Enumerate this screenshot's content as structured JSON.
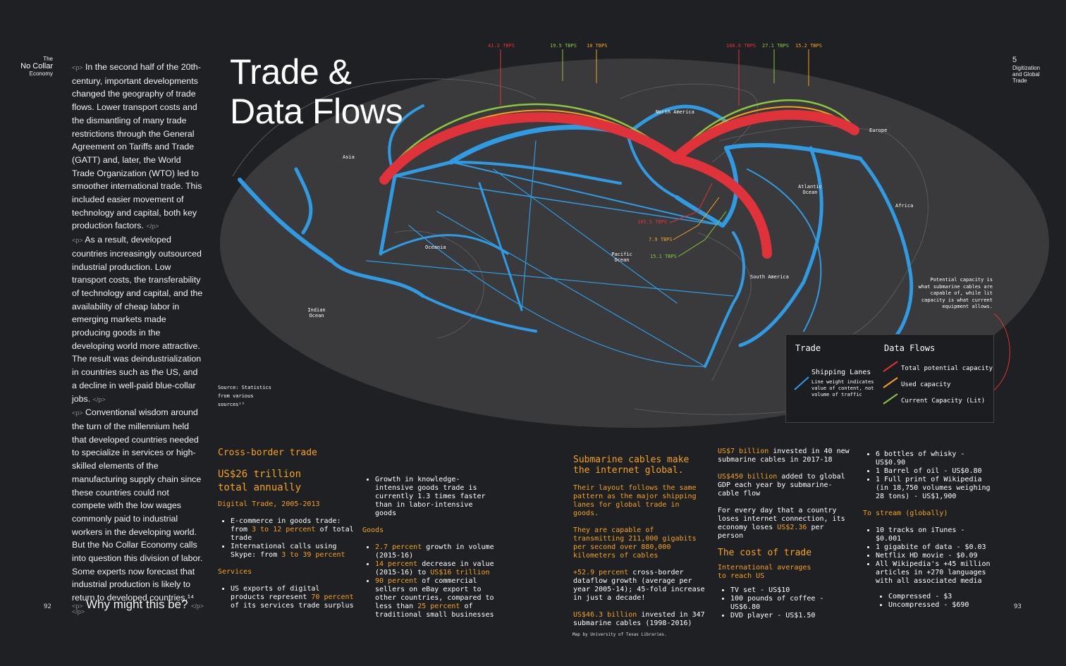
{
  "header": {
    "left_small": "The",
    "left_big": "No Collar",
    "left_small2": "Economy",
    "right_num": "5",
    "right_title_1": "Digitization",
    "right_title_2": "and Global",
    "right_title_3": "Trade"
  },
  "page_numbers": {
    "left": "92",
    "right": "93"
  },
  "tags": {
    "open": "<p>",
    "close": "</p>"
  },
  "body_paragraphs": [
    "In the second half of the 20th-century, important developments changed the geography of trade flows. Lower transport costs and the dismantling of many trade restrictions through the General Agreement on Tariffs and Trade (GATT) and, later, the World Trade Organization (WTO) led to smoother international trade. This included easier movement of technology and capital, both key production factors.",
    "As a result, developed countries increasingly outsourced industrial production. Low transport costs, the transferability of technology and capital, and the availability of cheap labor in emerging markets made producing goods in the developing world more attractive. The result was deindustrialization in countries such as the US, and a decline in well-paid blue-collar jobs.",
    "Conventional wisdom around the turn of the millennium held that developed countries needed to specialize in services or high-skilled elements of the manufacturing supply chain since these countries could not compete with the low wages commonly paid to industrial workers in the developing world. But the No Collar Economy calls into question this division of labor. Some experts now forecast that industrial production is likely to return to developed countries.¹⁴"
  ],
  "question": "Why might this be?",
  "title_line1": "Trade &",
  "title_line2": "Data Flows",
  "map": {
    "source_1": "Source: Statistics",
    "source_2": "from various",
    "source_3": "sources¹⁵",
    "credit": "Map by University of Texas Libraries.",
    "regions": {
      "asia": "Asia",
      "north_america": "North America",
      "europe": "Europe",
      "atlantic": "Atlantic Ocean",
      "africa": "Africa",
      "oceania": "Oceania",
      "pacific": "Pacific Ocean",
      "south_america": "South America",
      "indian": "Indian Ocean"
    },
    "tbps": {
      "left_red": "41.2 TBPS",
      "left_green": "19.5 TBPS",
      "left_orange": "10 TBPS",
      "right_red": "166.6 TBPS",
      "right_green": "27.1 TBPS",
      "right_orange": "15.2 TBPS",
      "sa_red": "105.5 TBPS",
      "sa_orange": "7.9 TBPS",
      "sa_green": "15.1 TBPS"
    },
    "note": "Potential capacity is what submarine cables are capable of, while lit capacity is what current equipment allows.",
    "colors": {
      "red": "#e0323a",
      "orange": "#f5a21b",
      "green": "#8cc63f",
      "blue": "#2f9be3"
    }
  },
  "legend": {
    "trade_title": "Trade",
    "data_title": "Data Flows",
    "shipping": "Shipping Lanes",
    "shipping_note": "Line weight indicates value of content, not volume of traffic",
    "total": "Total potential capacity",
    "used": "Used capacity",
    "current": "Current Capacity (Lit)"
  },
  "col1": {
    "heading": "Cross-border trade",
    "big1": "US$26 trillion",
    "big2": "total annually",
    "sub1": "Digital Trade, 2005-2013",
    "items1": [
      {
        "a": "E-commerce in goods trade: from ",
        "o": "3 to 12 percent",
        "b": " of total trade"
      },
      {
        "a": "International calls using Skype: from ",
        "o": "3 to 39 percent",
        "b": ""
      }
    ],
    "sub2": "Services",
    "items2": [
      {
        "a": "US exports of digital products represent ",
        "o": "70 percent",
        "b": " of its services trade surplus"
      }
    ]
  },
  "col2": {
    "item0": "Growth in knowledge-intensive goods trade is currently 1.3 times faster than in labor-intensive goods",
    "sub": "Goods",
    "items": [
      {
        "o": "2.7 percent",
        "b": " growth in volume (2015-16)"
      },
      {
        "o": "14 percent",
        "b": " decrease in value (2015-16) to ",
        "o2": "US$16 trillion"
      },
      {
        "o": "90 percent",
        "b": " of commercial sellers on eBay export to other countries, compared to less than ",
        "o2": "25 percent",
        "c": " of traditional small businesses"
      }
    ]
  },
  "col3": {
    "heading1": "Submarine cables make",
    "heading2": "the internet global.",
    "p1": "Their layout follows the same pattern as the major shipping lanes for global trade in goods.",
    "p2": "They are capable of transmitting 211,000 gigabits per second over 880,000 kilometers of cables",
    "p3o": "+52.9 percent",
    "p3": " cross-border dataflow growth (average per year 2005-14); 45-fold increase in just a decade!",
    "p4o": "US$46.3 billion",
    "p4": " invested in 347 submarine cables (1998-2016)"
  },
  "col4": {
    "p1o": "US$7 billion",
    "p1": " invested in 40 new submarine cables in 2017-18",
    "p2o": "US$450 billion",
    "p2": " added to global GDP each year by submarine-cable flow",
    "p3": "For every day that a country loses internet connection, its economy loses ",
    "p3o": "US$2.36",
    "p3b": " per person",
    "heading": "The cost of trade",
    "sub1": "International averages",
    "sub2": "to reach US",
    "items": [
      "TV set - US$10",
      "100 pounds of coffee - US$6.80",
      "DVD player - US$1.50"
    ]
  },
  "col5": {
    "items1": [
      "6 bottles of whisky - US$0.90",
      "1 Barrel of oil - US$0.80",
      "1 Full print of Wikipedia (in 18,750 volumes weighing 28 tons) - US$1,900"
    ],
    "heading": "To stream (globally)",
    "items2": [
      "10 tracks on iTunes - $0.001",
      "1 gigabite of data - $0.03",
      "Netflix HD movie - $0.09",
      "All Wikipedia's +45 million articles in +270 languages with all associated media"
    ],
    "items3": [
      "Compressed - $3",
      "Uncompressed - $690"
    ]
  }
}
